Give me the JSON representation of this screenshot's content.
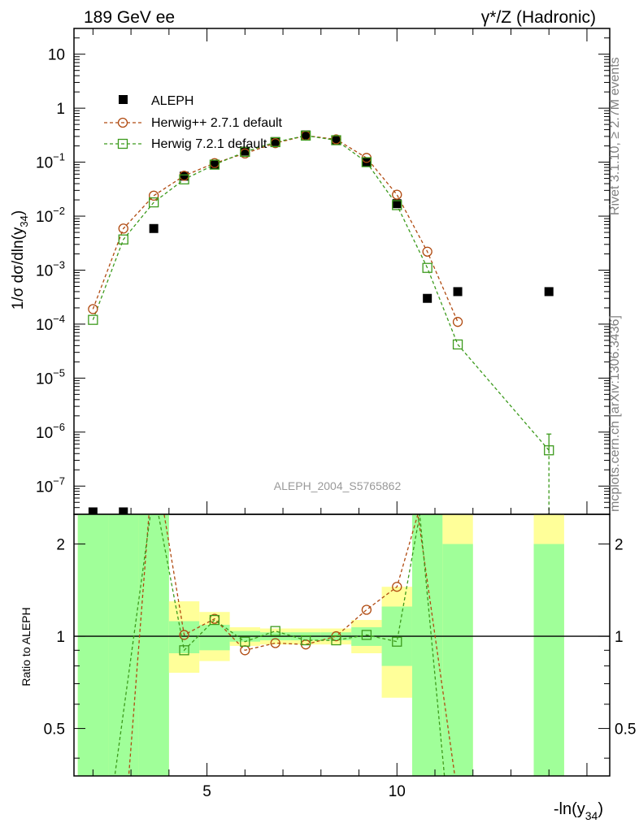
{
  "header": {
    "energy_label": "189 GeV ee",
    "process_label": "γ*/Z (Hadronic)"
  },
  "side_labels": {
    "rivet": "Rivet 3.1.10, ≥ 2.7M events",
    "mcplots": "mcplots.cern.ch [arXiv:1306.3436]"
  },
  "watermark": "ALEPH_2004_S5765862",
  "chart_data": [
    {
      "type": "scatter",
      "panel": "main",
      "ylabel": "1/σ  dσ/dln(y34)",
      "y_scale": "log",
      "ylim": [
        3e-08,
        30
      ],
      "xlim": [
        1.5,
        15.6
      ],
      "y_ticks": [
        "10^-7",
        "10^-6",
        "10^-5",
        "10^-4",
        "10^-3",
        "10^-2",
        "10^-1",
        "1",
        "10"
      ],
      "legend_position": "top-left",
      "colors": {
        "data": "#000000",
        "herwigpp": "#b04a10",
        "herwig7": "#3c9a1c",
        "band_green": "#a0ff99",
        "band_yellow": "#ffff99"
      },
      "series": [
        {
          "name": "ALEPH",
          "style": "filled-square",
          "x": [
            2.0,
            2.8,
            3.6,
            4.4,
            5.2,
            6.0,
            6.8,
            7.6,
            8.4,
            9.2,
            10.0,
            10.8,
            11.6,
            14.0
          ],
          "y": [
            2.6e-08,
            2.6e-08,
            0.0059,
            0.055,
            0.092,
            0.16,
            0.24,
            0.32,
            0.26,
            0.1,
            0.017,
            0.0003,
            0.0004,
            0.0004
          ]
        },
        {
          "name": "Herwig++ 2.7.1 default",
          "style": "open-circle-dashed",
          "x": [
            2.0,
            2.8,
            3.6,
            4.4,
            5.2,
            6.0,
            6.8,
            7.6,
            8.4,
            9.2,
            10.0,
            10.8,
            11.6
          ],
          "y": [
            0.00019,
            0.0059,
            0.024,
            0.056,
            0.096,
            0.145,
            0.225,
            0.31,
            0.265,
            0.12,
            0.025,
            0.0022,
            0.00011
          ]
        },
        {
          "name": "Herwig 7.2.1 default",
          "style": "open-square-dashed",
          "x": [
            2.0,
            2.8,
            3.6,
            4.4,
            5.2,
            6.0,
            6.8,
            7.6,
            8.4,
            9.2,
            10.0,
            10.8,
            11.6,
            14.0
          ],
          "y": [
            0.00012,
            0.0037,
            0.018,
            0.048,
            0.09,
            0.155,
            0.235,
            0.31,
            0.255,
            0.1,
            0.016,
            0.0011,
            4.2e-05,
            4.6e-07
          ]
        }
      ]
    },
    {
      "type": "line",
      "panel": "ratio",
      "ylabel": "Ratio to ALEPH",
      "y_scale": "log",
      "ylim": [
        0.35,
        2.5
      ],
      "xlim": [
        1.5,
        15.6
      ],
      "xlabel": "-ln(y34)",
      "x_ticks": [
        "5",
        "10"
      ],
      "y_ticks": [
        "0.5",
        "1",
        "2"
      ],
      "uncertainty_bands": {
        "x_edges": [
          1.6,
          2.4,
          3.2,
          4.0,
          4.8,
          5.6,
          6.4,
          7.2,
          8.0,
          8.8,
          9.6,
          10.4,
          11.2,
          12.0,
          13.6,
          14.4
        ],
        "green": [
          [
            0.3,
            2.5
          ],
          [
            0.3,
            2.5
          ],
          [
            0.3,
            2.5
          ],
          [
            0.88,
            1.12
          ],
          [
            0.9,
            1.09
          ],
          [
            0.96,
            1.04
          ],
          [
            0.97,
            1.03
          ],
          [
            0.97,
            1.03
          ],
          [
            0.97,
            1.03
          ],
          [
            0.93,
            1.07
          ],
          [
            0.8,
            1.25
          ],
          [
            0.3,
            2.5
          ],
          [
            0.3,
            2.0
          ],
          null,
          [
            0.3,
            2.0
          ]
        ],
        "yellow": [
          [
            0.3,
            2.5
          ],
          [
            0.3,
            2.5
          ],
          [
            0.3,
            2.5
          ],
          [
            0.76,
            1.3
          ],
          [
            0.83,
            1.2
          ],
          [
            0.93,
            1.07
          ],
          [
            0.94,
            1.06
          ],
          [
            0.94,
            1.06
          ],
          [
            0.94,
            1.06
          ],
          [
            0.88,
            1.13
          ],
          [
            0.63,
            1.45
          ],
          [
            0.3,
            2.5
          ],
          [
            0.3,
            2.5
          ],
          null,
          [
            0.3,
            2.5
          ]
        ]
      },
      "series": [
        {
          "name": "Herwig++ 2.7.1 default",
          "x": [
            2.9,
            3.6,
            4.4,
            5.2,
            6.0,
            6.8,
            7.6,
            8.4,
            9.2,
            10.0,
            10.55,
            11.6
          ],
          "y": [
            0.3,
            4.0,
            1.01,
            1.14,
            0.9,
            0.95,
            0.94,
            1.0,
            1.22,
            1.45,
            2.5,
            0.3
          ]
        },
        {
          "name": "Herwig 7.2.1 default",
          "x": [
            2.5,
            3.6,
            4.4,
            5.2,
            6.0,
            6.8,
            7.6,
            8.4,
            9.2,
            10.0,
            10.6,
            11.3
          ],
          "y": [
            0.3,
            3.0,
            0.9,
            1.13,
            0.96,
            1.04,
            0.97,
            0.97,
            1.01,
            0.96,
            2.5,
            0.3
          ]
        }
      ]
    }
  ]
}
